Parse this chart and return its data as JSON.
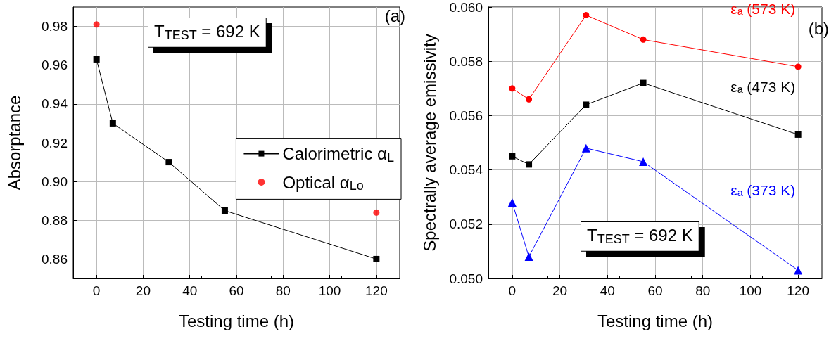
{
  "chart_data": [
    {
      "type": "line",
      "xlabel": "Testing time (h)",
      "ylabel": "Absorptance",
      "annotations": [
        "T$_{TEST}$ = 692 K",
        "(a)"
      ],
      "xlim": [
        -10,
        130
      ],
      "xticks": [
        0,
        20,
        40,
        60,
        80,
        100,
        120
      ],
      "ylim": [
        0.85,
        0.99
      ],
      "yticks": [
        0.86,
        0.88,
        {
          "value": 0.9,
          "label": "0.90"
        },
        0.92,
        0.94,
        0.96,
        0.98
      ],
      "grid": true,
      "legend": "right",
      "series": [
        {
          "name": "Calorimetric α$_{L}$",
          "color": "#000000",
          "marker": "square",
          "x": [
            0,
            7,
            31,
            55,
            120
          ],
          "values": [
            0.963,
            0.93,
            0.91,
            0.885,
            0.86
          ]
        },
        {
          "name": "Optical α$_{Lo}$",
          "type": "scatter",
          "color": "#ff0000",
          "marker": "circle",
          "x": [
            0,
            120
          ],
          "values": [
            0.981,
            0.884
          ]
        }
      ]
    },
    {
      "type": "line",
      "xlabel": "Testing time (h)",
      "ylabel": "Spectrally average emissivity",
      "annotations": [
        "T$_{TEST}$ = 692 K",
        "(b)"
      ],
      "xlim": [
        -10,
        130
      ],
      "xticks": [
        0,
        20,
        40,
        60,
        80,
        100,
        120
      ],
      "ylim": [
        0.05,
        0.06
      ],
      "yticks": [
        {
          "value": 0.05,
          "label": "0.050"
        },
        {
          "value": 0.052,
          "label": "0.052"
        },
        {
          "value": 0.054,
          "label": "0.054"
        },
        {
          "value": 0.056,
          "label": "0.056"
        },
        {
          "value": 0.058,
          "label": "0.058"
        },
        {
          "value": 0.06,
          "label": "0.060"
        }
      ],
      "grid": true,
      "series": [
        {
          "name": "εₐ (573 K)",
          "color": "#ff0000",
          "marker": "circle",
          "x": [
            0,
            7,
            31,
            55,
            120
          ],
          "values": [
            0.057,
            0.0566,
            0.0597,
            0.0588,
            0.0578
          ]
        },
        {
          "name": "εₐ (473 K)",
          "color": "#000000",
          "marker": "square",
          "x": [
            0,
            7,
            31,
            55,
            120
          ],
          "values": [
            0.0545,
            0.0542,
            0.0564,
            0.0572,
            0.0553
          ]
        },
        {
          "name": "εₐ (373 K)",
          "color": "#0000ff",
          "marker": "triangle",
          "x": [
            0,
            7,
            31,
            55,
            120
          ],
          "values": [
            0.0528,
            0.0508,
            0.0548,
            0.0543,
            0.0503
          ]
        }
      ]
    }
  ]
}
